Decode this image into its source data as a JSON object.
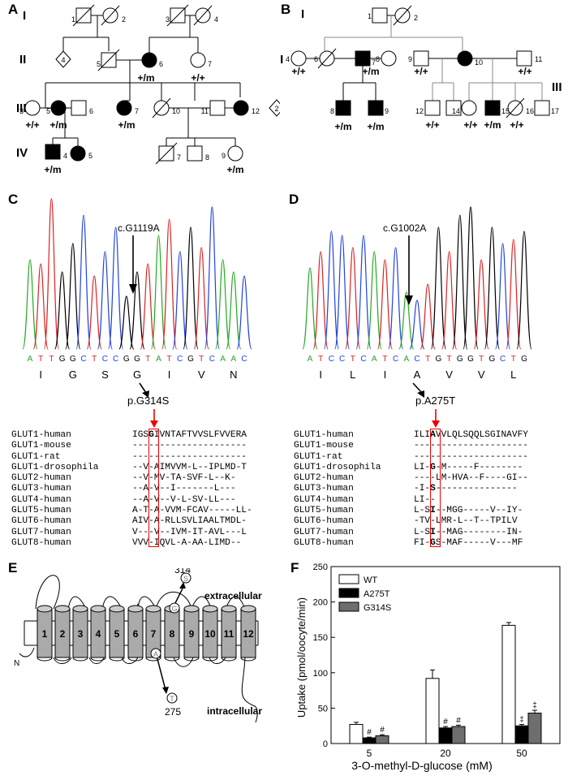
{
  "panels": {
    "A": "A",
    "B": "B",
    "C": "C",
    "D": "D",
    "E": "E",
    "F": "F"
  },
  "pedigree_A": {
    "generations": [
      "I",
      "II",
      "III",
      "IV"
    ],
    "ids": {
      "I1": "1",
      "I2": "2",
      "I3": "3",
      "I4": "4",
      "II4": "4",
      "II5": "5",
      "II6": "6",
      "II7": "7",
      "III2": "2",
      "III3": "3",
      "III5": "5",
      "III6": "6",
      "III7": "7",
      "III10": "10",
      "III11": "11",
      "III12": "12",
      "IV4": "4",
      "IV5": "5",
      "IV7": "7",
      "IV8": "8",
      "IV9": "9"
    },
    "genotypes": {
      "II6": "+/m",
      "II7": "+/+",
      "III3": "+/+",
      "III5": "+/m",
      "III7": "+/m",
      "IV4": "+/m",
      "IV9": "+/m"
    }
  },
  "pedigree_B": {
    "generations": [
      "I",
      "II",
      "III"
    ],
    "ids": {
      "I1": "1",
      "I2": "2",
      "II4": "4",
      "II6": "6",
      "II7": "7",
      "II8": "8",
      "II9": "9",
      "II10": "10",
      "II11": "11",
      "III8": "8",
      "III9": "9",
      "III12": "12",
      "III13": "13",
      "III14": "14",
      "III15": "15",
      "III16": "16",
      "III17": "17"
    },
    "genotypes": {
      "II4": "+/+",
      "II7": "+/m",
      "II9": "+/+",
      "II11": "+/+",
      "III8": "+/m",
      "III9": "+/m",
      "III12": "+/+",
      "III14": "+/+",
      "III15": "+/m",
      "III16": "+/+"
    }
  },
  "panel_C": {
    "mutation": "c.G1119A",
    "bases": [
      "A",
      "T",
      "T",
      "G",
      "G",
      "C",
      "T",
      "C",
      "C",
      "G",
      "G",
      "T",
      "A",
      "T",
      "C",
      "G",
      "T",
      "C",
      "A",
      "A",
      "C"
    ],
    "aa": [
      "I",
      "G",
      "S",
      "G",
      "I",
      "V",
      "N"
    ],
    "protein": "p.G314S",
    "names": [
      "GLUT1-human",
      "GLUT1-mouse",
      "GLUT1-rat",
      "GLUT1-drosophila",
      "GLUT2-human",
      "GLUT3-human",
      "GLUT4-human",
      "GLUT5-human",
      "GLUT6-human",
      "GLUT7-human",
      "GLUT8-human"
    ],
    "pre": [
      "IGS",
      "---",
      "---",
      "--V",
      "--V",
      "--A",
      "--A",
      "A-T",
      "AIV",
      "V--",
      "VVV"
    ],
    "site": [
      "G",
      "-",
      "-",
      "-",
      "-",
      "-",
      "-",
      "-",
      "-",
      "-",
      "-"
    ],
    "post": [
      "IVNTAFTVVSLFVVERA",
      "-----------------",
      "-----------------",
      "AIMVVM-L--IPLMD-T",
      "MV-TA-SVF-L--K-",
      "V--I-------L---",
      "V--V-L-SV-LL---",
      "A-VVM-FCAV-----LL-",
      "A-RLLSVLIAALTMDL-",
      "V--IVM-IT-AVL---L",
      "IQVL-A-AA-LIMD--"
    ]
  },
  "panel_D": {
    "mutation": "c.G1002A",
    "bases": [
      "A",
      "T",
      "C",
      "C",
      "T",
      "C",
      "A",
      "T",
      "C",
      "A",
      "C",
      "T",
      "G",
      "T",
      "G",
      "G",
      "T",
      "G",
      "C",
      "T",
      "G"
    ],
    "aa": [
      "I",
      "L",
      "I",
      "A",
      "V",
      "V",
      "L"
    ],
    "protein": "p.A275T",
    "names": [
      "GLUT1-human",
      "GLUT1-mouse",
      "GLUT1-rat",
      "GLUT1-drosophila",
      "GLUT2-human",
      "GLUT3-human",
      "GLUT4-human",
      "GLUT5-human",
      "GLUT6-human",
      "GLUT7-human",
      "GLUT8-human"
    ],
    "pre": [
      "ILI",
      "---",
      "---",
      "LI-",
      "---",
      "-I-",
      "LI-",
      "L-S",
      "-TV",
      "L-S",
      "FI-"
    ],
    "site": [
      "A",
      "-",
      "-",
      "G",
      "-",
      "S",
      "-",
      "I",
      "-",
      "I",
      "G"
    ],
    "post": [
      "VVLQLSQQLSGINAVFY",
      "-----------------",
      "-----------------",
      "-M-----F--------",
      "LM-HVA--F----GI--",
      "---------------",
      "",
      "--MGG-----V--IY-",
      "LMR-L--T--TPILV",
      "--MAG--------IN-",
      "S-MAF-----V---MF"
    ]
  },
  "panel_E": {
    "helices": [
      "1",
      "2",
      "3",
      "4",
      "5",
      "6",
      "7",
      "8",
      "9",
      "10",
      "11",
      "12"
    ],
    "res314": "314",
    "aa314": "S",
    "wt314": "G",
    "res275": "275",
    "aa275": "T",
    "wt275": "A",
    "extracellular": "extracellular",
    "intracellular": "intracellular",
    "nterm": "N"
  },
  "chart_data": {
    "type": "bar",
    "categories": [
      "5",
      "20",
      "50"
    ],
    "series": [
      {
        "name": "WT",
        "values": [
          27,
          92,
          167
        ],
        "errors": [
          3,
          12,
          4
        ],
        "color": "#ffffff"
      },
      {
        "name": "A275T",
        "values": [
          8,
          22,
          25
        ],
        "errors": [
          1,
          2,
          2
        ],
        "color": "#000000"
      },
      {
        "name": "G314S",
        "values": [
          11,
          24,
          43
        ],
        "errors": [
          1.5,
          2,
          4
        ],
        "color": "#6e6e6e"
      }
    ],
    "markers": [
      [
        "",
        "#",
        "#"
      ],
      [
        "",
        "#",
        "#"
      ],
      [
        "",
        "‡",
        "‡"
      ]
    ],
    "yticks": [
      "0",
      "50",
      "100",
      "150",
      "200",
      "250"
    ],
    "ylim": [
      0,
      250
    ],
    "ylabel": "Uptake (pmol/oocyte/min)",
    "xlabel": "3-O-methyl-D-glucose (mM)",
    "legend_position": "top-left"
  }
}
